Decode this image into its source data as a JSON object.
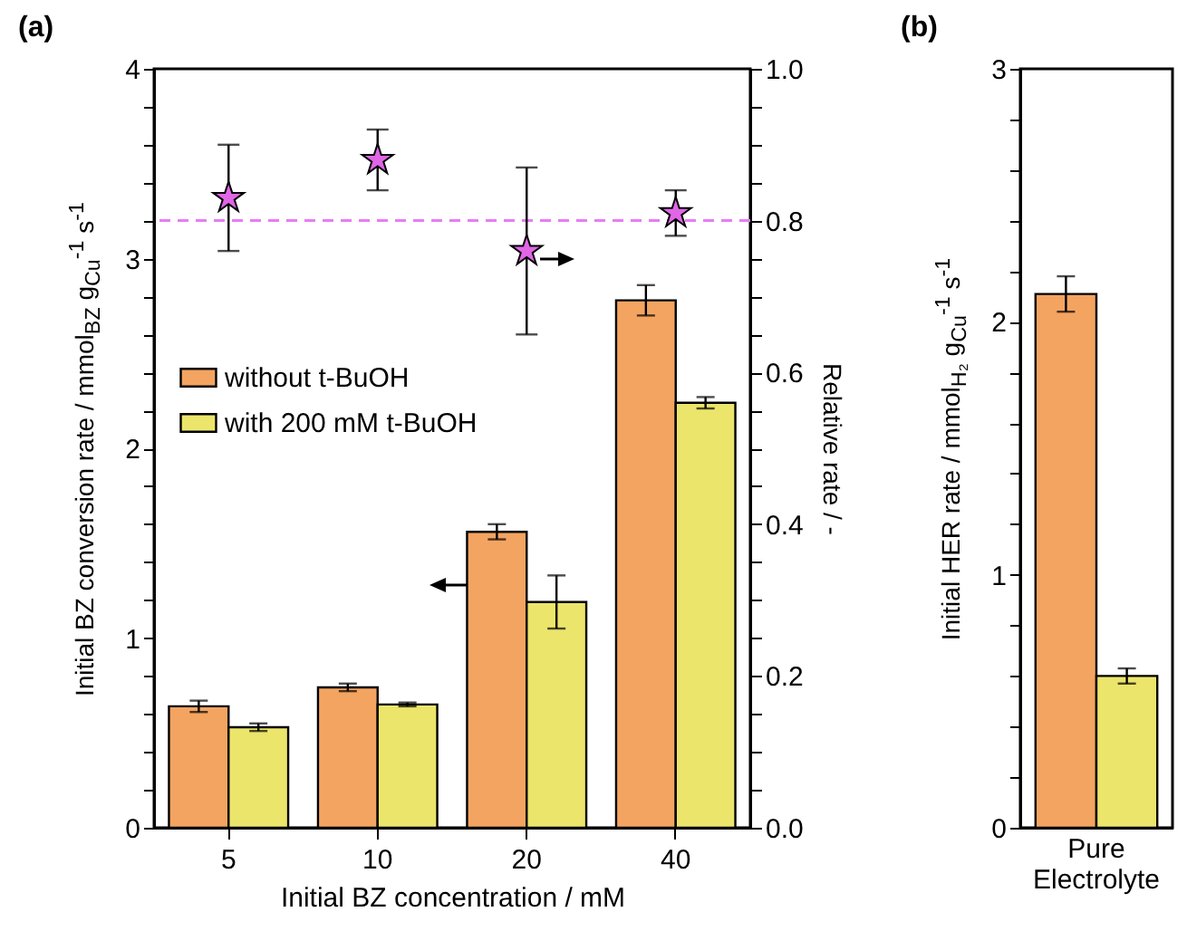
{
  "chart_data": [
    {
      "type": "bar",
      "title": "(a)",
      "xlabel": "Initial BZ concentration / mM",
      "ylabel": "Initial BZ conversion rate / mmol$_{BZ}$ g$_{Cu}$$^{-1}$ s$^{-1}$",
      "y2label": "Relative rate / -",
      "categories": [
        "5",
        "10",
        "20",
        "40"
      ],
      "series": [
        {
          "name": "without t-BuOH",
          "color": "#f4a461",
          "values": [
            0.64,
            0.74,
            1.56,
            2.78
          ],
          "errors": [
            0.03,
            0.02,
            0.04,
            0.08
          ]
        },
        {
          "name": "with 200 mM t-BuOH",
          "color": "#ece56b",
          "values": [
            0.53,
            0.65,
            1.19,
            2.24
          ],
          "errors": [
            0.02,
            0.01,
            0.14,
            0.03
          ]
        },
        {
          "type": "scatter",
          "axis": "y2",
          "color": "#e066e6",
          "marker": "star",
          "values": [
            0.83,
            0.88,
            0.76,
            0.81
          ],
          "errors": [
            0.07,
            0.04,
            0.11,
            0.03
          ]
        }
      ],
      "ylim": [
        0,
        4
      ],
      "yticks": [
        0,
        {
          "value": 0.2,
          "label": null
        },
        {
          "value": 0.4,
          "label": null
        },
        {
          "value": 0.6,
          "label": null
        },
        {
          "value": 0.8,
          "label": null
        },
        1,
        {
          "value": 1.2,
          "label": null
        },
        {
          "value": 1.4,
          "label": null
        },
        {
          "value": 1.6,
          "label": null
        },
        {
          "value": 1.8,
          "label": null
        },
        2,
        {
          "value": 2.2,
          "label": null
        },
        {
          "value": 2.4,
          "label": null
        },
        {
          "value": 2.6,
          "label": null
        },
        {
          "value": 2.8,
          "label": null
        },
        3,
        {
          "value": 3.2,
          "label": null
        },
        {
          "value": 3.4,
          "label": null
        },
        {
          "value": 3.6,
          "label": null
        },
        {
          "value": 3.8,
          "label": null
        },
        4
      ],
      "y2lim": [
        0,
        1
      ],
      "y2ticks": [
        {
          "value": 0,
          "label": "0.0"
        },
        {
          "value": 0.05,
          "label": null
        },
        {
          "value": 0.1,
          "label": null
        },
        {
          "value": 0.15,
          "label": null
        },
        {
          "value": 0.2,
          "label": "0.2"
        },
        {
          "value": 0.25,
          "label": null
        },
        {
          "value": 0.3,
          "label": null
        },
        {
          "value": 0.35,
          "label": null
        },
        {
          "value": 0.4,
          "label": "0.4"
        },
        {
          "value": 0.45,
          "label": null
        },
        {
          "value": 0.5,
          "label": null
        },
        {
          "value": 0.55,
          "label": null
        },
        {
          "value": 0.6,
          "label": "0.6"
        },
        {
          "value": 0.65,
          "label": null
        },
        {
          "value": 0.7,
          "label": null
        },
        {
          "value": 0.75,
          "label": null
        },
        {
          "value": 0.8,
          "label": "0.8"
        },
        {
          "value": 0.85,
          "label": null
        },
        {
          "value": 0.9,
          "label": null
        },
        {
          "value": 0.95,
          "label": null
        },
        {
          "value": 1,
          "label": "1.0"
        }
      ],
      "ref_lines": [
        {
          "axis": "y2",
          "value": 0.8,
          "color": "#e87cf5",
          "line_style": "dashed"
        }
      ],
      "legend": "left"
    },
    {
      "type": "bar",
      "title": "(b)",
      "ylabel": "Initial HER rate / mmol$_{H₂}$ g$_{Cu}$$^{-1}$ s$^{-1}$",
      "categories": [
        "Pure Electrolyte"
      ],
      "series": [
        {
          "color": "#f4a461",
          "values": [
            2.11
          ],
          "errors": [
            0.07
          ]
        },
        {
          "color": "#ece56b",
          "values": [
            0.6
          ],
          "errors": [
            0.03
          ]
        }
      ],
      "ylim": [
        0,
        3
      ],
      "yticks": [
        0,
        {
          "value": 0.2,
          "label": null
        },
        {
          "value": 0.4,
          "label": null
        },
        {
          "value": 0.6,
          "label": null
        },
        {
          "value": 0.8,
          "label": null
        },
        1,
        {
          "value": 1.2,
          "label": null
        },
        {
          "value": 1.4,
          "label": null
        },
        {
          "value": 1.6,
          "label": null
        },
        {
          "value": 1.8,
          "label": null
        },
        2,
        {
          "value": 2.2,
          "label": null
        },
        {
          "value": 2.4,
          "label": null
        },
        {
          "value": 2.6,
          "label": null
        },
        {
          "value": 2.8,
          "label": null
        },
        3
      ]
    }
  ]
}
